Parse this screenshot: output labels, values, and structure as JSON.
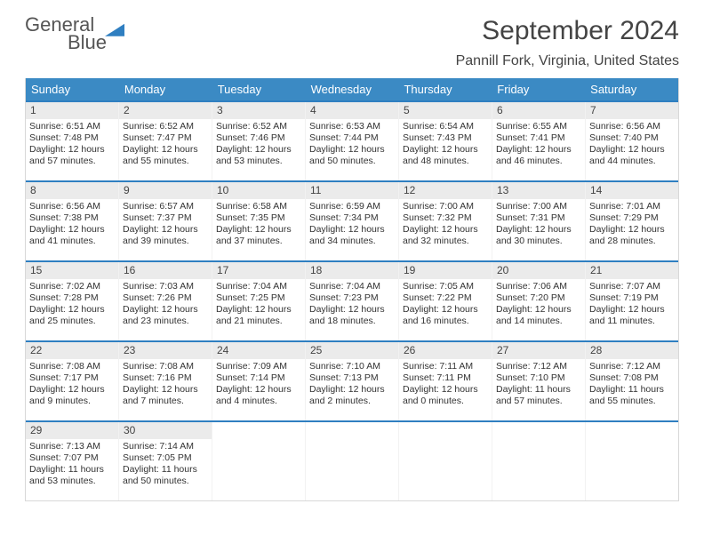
{
  "logo": {
    "line1": "General",
    "line2": "Blue"
  },
  "title": "September 2024",
  "location": "Pannill Fork, Virginia, United States",
  "colors": {
    "header_bg": "#3b8ac4",
    "week_border": "#2f7fc1",
    "daynum_bg": "#ebebeb"
  },
  "dow": [
    "Sunday",
    "Monday",
    "Tuesday",
    "Wednesday",
    "Thursday",
    "Friday",
    "Saturday"
  ],
  "weeks": [
    [
      {
        "n": "1",
        "sr": "Sunrise: 6:51 AM",
        "ss": "Sunset: 7:48 PM",
        "d1": "Daylight: 12 hours",
        "d2": "and 57 minutes."
      },
      {
        "n": "2",
        "sr": "Sunrise: 6:52 AM",
        "ss": "Sunset: 7:47 PM",
        "d1": "Daylight: 12 hours",
        "d2": "and 55 minutes."
      },
      {
        "n": "3",
        "sr": "Sunrise: 6:52 AM",
        "ss": "Sunset: 7:46 PM",
        "d1": "Daylight: 12 hours",
        "d2": "and 53 minutes."
      },
      {
        "n": "4",
        "sr": "Sunrise: 6:53 AM",
        "ss": "Sunset: 7:44 PM",
        "d1": "Daylight: 12 hours",
        "d2": "and 50 minutes."
      },
      {
        "n": "5",
        "sr": "Sunrise: 6:54 AM",
        "ss": "Sunset: 7:43 PM",
        "d1": "Daylight: 12 hours",
        "d2": "and 48 minutes."
      },
      {
        "n": "6",
        "sr": "Sunrise: 6:55 AM",
        "ss": "Sunset: 7:41 PM",
        "d1": "Daylight: 12 hours",
        "d2": "and 46 minutes."
      },
      {
        "n": "7",
        "sr": "Sunrise: 6:56 AM",
        "ss": "Sunset: 7:40 PM",
        "d1": "Daylight: 12 hours",
        "d2": "and 44 minutes."
      }
    ],
    [
      {
        "n": "8",
        "sr": "Sunrise: 6:56 AM",
        "ss": "Sunset: 7:38 PM",
        "d1": "Daylight: 12 hours",
        "d2": "and 41 minutes."
      },
      {
        "n": "9",
        "sr": "Sunrise: 6:57 AM",
        "ss": "Sunset: 7:37 PM",
        "d1": "Daylight: 12 hours",
        "d2": "and 39 minutes."
      },
      {
        "n": "10",
        "sr": "Sunrise: 6:58 AM",
        "ss": "Sunset: 7:35 PM",
        "d1": "Daylight: 12 hours",
        "d2": "and 37 minutes."
      },
      {
        "n": "11",
        "sr": "Sunrise: 6:59 AM",
        "ss": "Sunset: 7:34 PM",
        "d1": "Daylight: 12 hours",
        "d2": "and 34 minutes."
      },
      {
        "n": "12",
        "sr": "Sunrise: 7:00 AM",
        "ss": "Sunset: 7:32 PM",
        "d1": "Daylight: 12 hours",
        "d2": "and 32 minutes."
      },
      {
        "n": "13",
        "sr": "Sunrise: 7:00 AM",
        "ss": "Sunset: 7:31 PM",
        "d1": "Daylight: 12 hours",
        "d2": "and 30 minutes."
      },
      {
        "n": "14",
        "sr": "Sunrise: 7:01 AM",
        "ss": "Sunset: 7:29 PM",
        "d1": "Daylight: 12 hours",
        "d2": "and 28 minutes."
      }
    ],
    [
      {
        "n": "15",
        "sr": "Sunrise: 7:02 AM",
        "ss": "Sunset: 7:28 PM",
        "d1": "Daylight: 12 hours",
        "d2": "and 25 minutes."
      },
      {
        "n": "16",
        "sr": "Sunrise: 7:03 AM",
        "ss": "Sunset: 7:26 PM",
        "d1": "Daylight: 12 hours",
        "d2": "and 23 minutes."
      },
      {
        "n": "17",
        "sr": "Sunrise: 7:04 AM",
        "ss": "Sunset: 7:25 PM",
        "d1": "Daylight: 12 hours",
        "d2": "and 21 minutes."
      },
      {
        "n": "18",
        "sr": "Sunrise: 7:04 AM",
        "ss": "Sunset: 7:23 PM",
        "d1": "Daylight: 12 hours",
        "d2": "and 18 minutes."
      },
      {
        "n": "19",
        "sr": "Sunrise: 7:05 AM",
        "ss": "Sunset: 7:22 PM",
        "d1": "Daylight: 12 hours",
        "d2": "and 16 minutes."
      },
      {
        "n": "20",
        "sr": "Sunrise: 7:06 AM",
        "ss": "Sunset: 7:20 PM",
        "d1": "Daylight: 12 hours",
        "d2": "and 14 minutes."
      },
      {
        "n": "21",
        "sr": "Sunrise: 7:07 AM",
        "ss": "Sunset: 7:19 PM",
        "d1": "Daylight: 12 hours",
        "d2": "and 11 minutes."
      }
    ],
    [
      {
        "n": "22",
        "sr": "Sunrise: 7:08 AM",
        "ss": "Sunset: 7:17 PM",
        "d1": "Daylight: 12 hours",
        "d2": "and 9 minutes."
      },
      {
        "n": "23",
        "sr": "Sunrise: 7:08 AM",
        "ss": "Sunset: 7:16 PM",
        "d1": "Daylight: 12 hours",
        "d2": "and 7 minutes."
      },
      {
        "n": "24",
        "sr": "Sunrise: 7:09 AM",
        "ss": "Sunset: 7:14 PM",
        "d1": "Daylight: 12 hours",
        "d2": "and 4 minutes."
      },
      {
        "n": "25",
        "sr": "Sunrise: 7:10 AM",
        "ss": "Sunset: 7:13 PM",
        "d1": "Daylight: 12 hours",
        "d2": "and 2 minutes."
      },
      {
        "n": "26",
        "sr": "Sunrise: 7:11 AM",
        "ss": "Sunset: 7:11 PM",
        "d1": "Daylight: 12 hours",
        "d2": "and 0 minutes."
      },
      {
        "n": "27",
        "sr": "Sunrise: 7:12 AM",
        "ss": "Sunset: 7:10 PM",
        "d1": "Daylight: 11 hours",
        "d2": "and 57 minutes."
      },
      {
        "n": "28",
        "sr": "Sunrise: 7:12 AM",
        "ss": "Sunset: 7:08 PM",
        "d1": "Daylight: 11 hours",
        "d2": "and 55 minutes."
      }
    ],
    [
      {
        "n": "29",
        "sr": "Sunrise: 7:13 AM",
        "ss": "Sunset: 7:07 PM",
        "d1": "Daylight: 11 hours",
        "d2": "and 53 minutes."
      },
      {
        "n": "30",
        "sr": "Sunrise: 7:14 AM",
        "ss": "Sunset: 7:05 PM",
        "d1": "Daylight: 11 hours",
        "d2": "and 50 minutes."
      },
      {
        "empty": true
      },
      {
        "empty": true
      },
      {
        "empty": true
      },
      {
        "empty": true
      },
      {
        "empty": true
      }
    ]
  ]
}
